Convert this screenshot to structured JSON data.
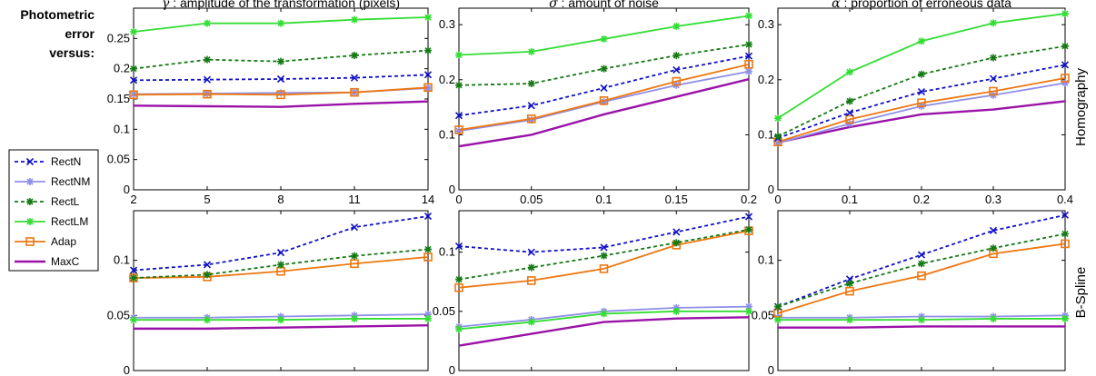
{
  "figure": {
    "lead_label": [
      "Photometric",
      "error",
      "versus:"
    ],
    "row_labels": [
      "Homography",
      "B-Spline"
    ]
  },
  "legend": [
    {
      "name": "RectN",
      "color": "#1010c8",
      "dash": "4,3",
      "marker": "x"
    },
    {
      "name": "RectNM",
      "color": "#8f8fe8",
      "dash": "",
      "marker": "asterisk"
    },
    {
      "name": "RectL",
      "color": "#157a15",
      "dash": "4,3",
      "marker": "asterisk"
    },
    {
      "name": "RectLM",
      "color": "#33dd33",
      "dash": "",
      "marker": "asterisk"
    },
    {
      "name": "Adap",
      "color": "#ee7711",
      "dash": "",
      "marker": "square"
    },
    {
      "name": "MaxC",
      "color": "#9a12a8",
      "dash": "",
      "marker": "none"
    }
  ],
  "chart_data": [
    {
      "type": "line",
      "title_symbol": "γ",
      "title": ": amplitude of the transformation (pixels)",
      "row": "Homography",
      "x": [
        2,
        5,
        8,
        11,
        14
      ],
      "x_tick_labels": [
        "2",
        "5",
        "8",
        "11",
        "14"
      ],
      "xlim": [
        2,
        14
      ],
      "ylim": [
        0,
        0.3
      ],
      "y_ticks": [
        0,
        0.05,
        0.1,
        0.15,
        0.2,
        0.25
      ],
      "y_tick_labels": [
        "0",
        "0.05",
        "0.1",
        "0.15",
        "0.2",
        "0.25"
      ],
      "series": [
        {
          "name": "RectN",
          "values": [
            0.181,
            0.182,
            0.183,
            0.185,
            0.19
          ]
        },
        {
          "name": "RectNM",
          "values": [
            0.158,
            0.159,
            0.16,
            0.161,
            0.168
          ]
        },
        {
          "name": "RectL",
          "values": [
            0.2,
            0.215,
            0.212,
            0.222,
            0.23
          ]
        },
        {
          "name": "RectLM",
          "values": [
            0.261,
            0.275,
            0.275,
            0.281,
            0.285
          ]
        },
        {
          "name": "Adap",
          "values": [
            0.157,
            0.158,
            0.157,
            0.161,
            0.169
          ]
        },
        {
          "name": "MaxC",
          "values": [
            0.139,
            0.138,
            0.137,
            0.142,
            0.146
          ]
        }
      ]
    },
    {
      "type": "line",
      "title_symbol": "σ",
      "title": ": amount of noise",
      "row": "Homography",
      "x": [
        0,
        0.05,
        0.1,
        0.15,
        0.2
      ],
      "x_tick_labels": [
        "0",
        "0.05",
        "0.1",
        "0.15",
        "0.2"
      ],
      "xlim": [
        0,
        0.2
      ],
      "ylim": [
        0,
        0.33
      ],
      "y_ticks": [
        0,
        0.1,
        0.2,
        0.3
      ],
      "y_tick_labels": [
        "0",
        "0.1",
        "0.2",
        "0.3"
      ],
      "series": [
        {
          "name": "RectN",
          "values": [
            0.135,
            0.153,
            0.185,
            0.218,
            0.243
          ]
        },
        {
          "name": "RectNM",
          "values": [
            0.107,
            0.127,
            0.16,
            0.19,
            0.215
          ]
        },
        {
          "name": "RectL",
          "values": [
            0.19,
            0.193,
            0.22,
            0.244,
            0.264
          ]
        },
        {
          "name": "RectLM",
          "values": [
            0.245,
            0.251,
            0.274,
            0.297,
            0.316
          ]
        },
        {
          "name": "Adap",
          "values": [
            0.109,
            0.129,
            0.162,
            0.197,
            0.228
          ]
        },
        {
          "name": "MaxC",
          "values": [
            0.079,
            0.1,
            0.137,
            0.169,
            0.201
          ]
        }
      ]
    },
    {
      "type": "line",
      "title_symbol": "α",
      "title": ": proportion of erroneous data",
      "row": "Homography",
      "x": [
        0,
        0.1,
        0.2,
        0.3,
        0.4
      ],
      "x_tick_labels": [
        "0",
        "0.1",
        "0.2",
        "0.3",
        "0.4"
      ],
      "xlim": [
        0,
        0.4
      ],
      "ylim": [
        0,
        0.33
      ],
      "y_ticks": [
        0,
        0.1,
        0.2,
        0.3
      ],
      "y_tick_labels": [
        "0",
        "0.1",
        "0.2",
        "0.3"
      ],
      "series": [
        {
          "name": "RectN",
          "values": [
            0.094,
            0.14,
            0.178,
            0.202,
            0.227
          ]
        },
        {
          "name": "RectNM",
          "values": [
            0.085,
            0.12,
            0.152,
            0.172,
            0.194
          ]
        },
        {
          "name": "RectL",
          "values": [
            0.097,
            0.161,
            0.21,
            0.24,
            0.261
          ]
        },
        {
          "name": "RectLM",
          "values": [
            0.13,
            0.214,
            0.27,
            0.303,
            0.32
          ]
        },
        {
          "name": "Adap",
          "values": [
            0.087,
            0.128,
            0.158,
            0.179,
            0.203
          ]
        },
        {
          "name": "MaxC",
          "values": [
            0.086,
            0.114,
            0.137,
            0.146,
            0.161
          ]
        }
      ]
    },
    {
      "type": "line",
      "title_symbol": "",
      "title": "",
      "row": "B-Spline",
      "x": [
        2,
        5,
        8,
        11,
        14
      ],
      "x_tick_labels": [],
      "xlim": [
        2,
        14
      ],
      "ylim": [
        0,
        0.145
      ],
      "y_ticks": [
        0,
        0.05,
        0.1
      ],
      "y_tick_labels": [
        "0",
        "0.05",
        "0.1"
      ],
      "series": [
        {
          "name": "RectN",
          "values": [
            0.091,
            0.096,
            0.107,
            0.13,
            0.14
          ]
        },
        {
          "name": "RectNM",
          "values": [
            0.048,
            0.048,
            0.049,
            0.05,
            0.051
          ]
        },
        {
          "name": "RectL",
          "values": [
            0.084,
            0.087,
            0.096,
            0.104,
            0.11
          ]
        },
        {
          "name": "RectLM",
          "values": [
            0.046,
            0.046,
            0.046,
            0.047,
            0.047
          ]
        },
        {
          "name": "Adap",
          "values": [
            0.084,
            0.085,
            0.09,
            0.097,
            0.103
          ]
        },
        {
          "name": "MaxC",
          "values": [
            0.038,
            0.038,
            0.039,
            0.04,
            0.041
          ]
        }
      ]
    },
    {
      "type": "line",
      "title_symbol": "",
      "title": "",
      "row": "B-Spline",
      "x": [
        0,
        0.05,
        0.1,
        0.15,
        0.2
      ],
      "x_tick_labels": [],
      "xlim": [
        0,
        0.2
      ],
      "ylim": [
        0,
        0.135
      ],
      "y_ticks": [
        0,
        0.05,
        0.1
      ],
      "y_tick_labels": [
        "0",
        "0.05",
        "0.1"
      ],
      "series": [
        {
          "name": "RectN",
          "values": [
            0.105,
            0.1,
            0.104,
            0.117,
            0.13
          ]
        },
        {
          "name": "RectNM",
          "values": [
            0.037,
            0.043,
            0.05,
            0.053,
            0.054
          ]
        },
        {
          "name": "RectL",
          "values": [
            0.077,
            0.087,
            0.097,
            0.108,
            0.119
          ]
        },
        {
          "name": "RectLM",
          "values": [
            0.035,
            0.041,
            0.048,
            0.05,
            0.05
          ]
        },
        {
          "name": "Adap",
          "values": [
            0.07,
            0.076,
            0.086,
            0.106,
            0.118
          ]
        },
        {
          "name": "MaxC",
          "values": [
            0.021,
            0.031,
            0.041,
            0.044,
            0.045
          ]
        }
      ]
    },
    {
      "type": "line",
      "title_symbol": "",
      "title": "",
      "row": "B-Spline",
      "x": [
        0,
        0.1,
        0.2,
        0.3,
        0.4
      ],
      "x_tick_labels": [],
      "xlim": [
        0,
        0.4
      ],
      "ylim": [
        0,
        0.145
      ],
      "y_ticks": [
        0,
        0.05,
        0.1
      ],
      "y_tick_labels": [
        "0",
        "0.05",
        "0.1"
      ],
      "series": [
        {
          "name": "RectN",
          "values": [
            0.058,
            0.083,
            0.105,
            0.127,
            0.141
          ]
        },
        {
          "name": "RectNM",
          "values": [
            0.048,
            0.048,
            0.049,
            0.049,
            0.05
          ]
        },
        {
          "name": "RectL",
          "values": [
            0.058,
            0.079,
            0.097,
            0.111,
            0.124
          ]
        },
        {
          "name": "RectLM",
          "values": [
            0.046,
            0.046,
            0.046,
            0.047,
            0.047
          ]
        },
        {
          "name": "Adap",
          "values": [
            0.052,
            0.072,
            0.086,
            0.106,
            0.115
          ]
        },
        {
          "name": "MaxC",
          "values": [
            0.039,
            0.039,
            0.04,
            0.04,
            0.04
          ]
        }
      ]
    }
  ]
}
